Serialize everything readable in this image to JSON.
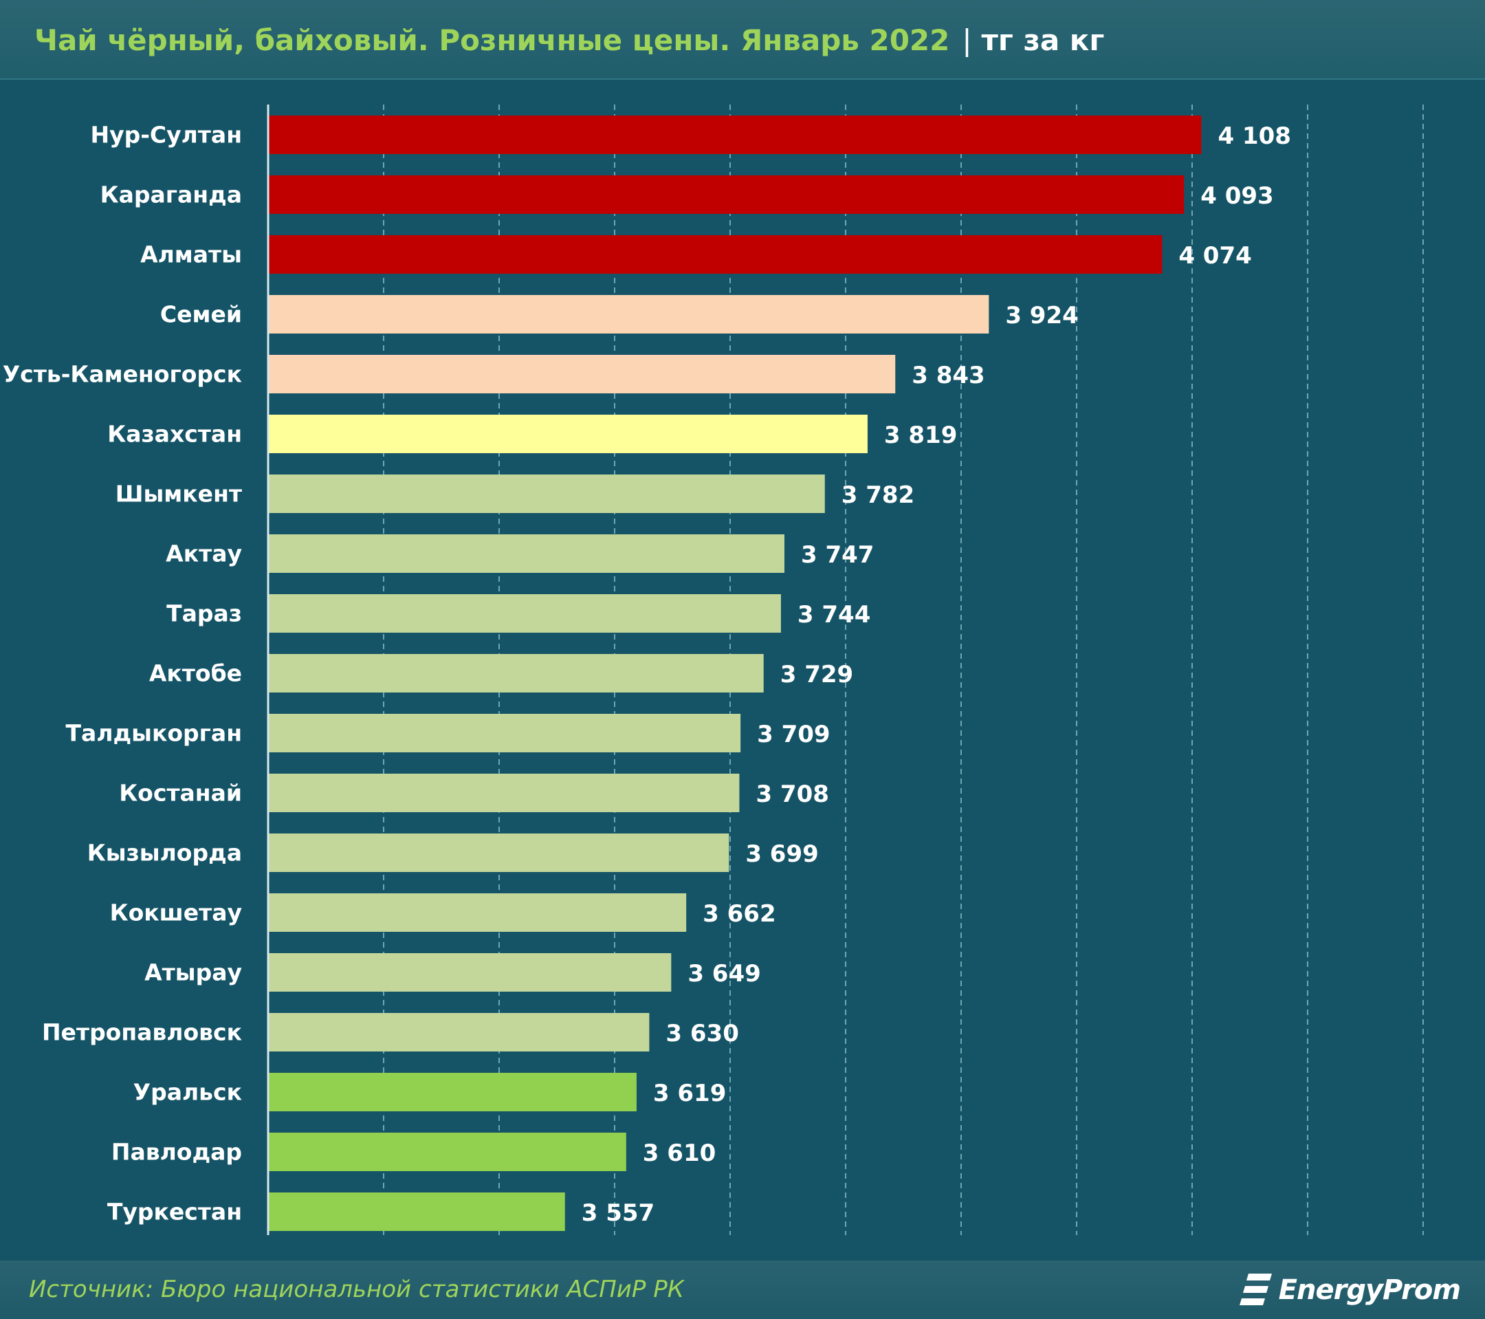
{
  "header": {
    "title": "Чай чёрный, байховый. Розничные цены. Январь 2022",
    "separator": "|",
    "unit": "тг за кг"
  },
  "footer": {
    "source": "Источник: Бюро национальной статистики АСПиР РК",
    "logo_text": "EnergyProm"
  },
  "colors": {
    "background": "#155466",
    "red": "#c00000",
    "peach": "#fcd5b5",
    "yellow": "#ffff99",
    "sage": "#c4d79b",
    "green": "#92d050",
    "grid": "#6fa6b4",
    "text": "#ffffff"
  },
  "chart_data": {
    "type": "bar",
    "orientation": "horizontal",
    "title": "Чай чёрный, байховый. Розничные цены. Январь 2022",
    "xlabel": "тг за кг",
    "ylabel": "",
    "xlim": [
      3300,
      4300
    ],
    "grid": true,
    "categories": [
      "Нур-Султан",
      "Караганда",
      "Алматы",
      "Семей",
      "Усть-Каменогорск",
      "Казахстан",
      "Шымкент",
      "Актау",
      "Тараз",
      "Актобе",
      "Талдыкорган",
      "Костанай",
      "Кызылорда",
      "Кокшетау",
      "Атырау",
      "Петропавловск",
      "Уральск",
      "Павлодар",
      "Туркестан"
    ],
    "values": [
      4108,
      4093,
      4074,
      3924,
      3843,
      3819,
      3782,
      3747,
      3744,
      3729,
      3709,
      3708,
      3699,
      3662,
      3649,
      3630,
      3619,
      3610,
      3557
    ],
    "value_labels": [
      "4 108",
      "4 093",
      "4 074",
      "3 924",
      "3 843",
      "3 819",
      "3 782",
      "3 747",
      "3 744",
      "3 729",
      "3 709",
      "3 708",
      "3 699",
      "3 662",
      "3 649",
      "3 630",
      "3 619",
      "3 610",
      "3 557"
    ],
    "bar_colors": [
      "red",
      "red",
      "red",
      "peach",
      "peach",
      "yellow",
      "sage",
      "sage",
      "sage",
      "sage",
      "sage",
      "sage",
      "sage",
      "sage",
      "sage",
      "sage",
      "green",
      "green",
      "green"
    ]
  }
}
